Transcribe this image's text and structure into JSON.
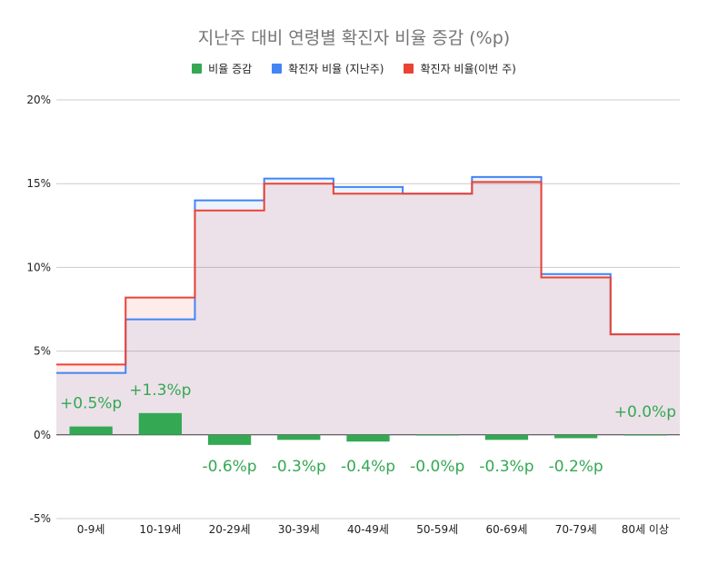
{
  "chart_data": {
    "type": "bar",
    "title": "지난주 대비 연령별 확진자 비율 증감 (%p)",
    "categories": [
      "0-9세",
      "10-19세",
      "20-29세",
      "30-39세",
      "40-49세",
      "50-59세",
      "60-69세",
      "70-79세",
      "80세 이상"
    ],
    "ylim": [
      -5,
      20
    ],
    "yticks": [
      "-5%",
      "0%",
      "5%",
      "10%",
      "15%",
      "20%"
    ],
    "ytick_values": [
      -5,
      0,
      5,
      10,
      15,
      20
    ],
    "grid": true,
    "legend_position": "top",
    "series": [
      {
        "name": "비율 증감",
        "kind": "bar",
        "color": "#34a853",
        "values": [
          0.5,
          1.3,
          -0.6,
          -0.3,
          -0.4,
          -0.0,
          -0.3,
          -0.2,
          0.0
        ],
        "labels": [
          "+0.5%p",
          "+1.3%p",
          "-0.6%p",
          "-0.3%p",
          "-0.4%p",
          "-0.0%p",
          "-0.3%p",
          "-0.2%p",
          "+0.0%p"
        ]
      },
      {
        "name": "확진자 비율 (지난주)",
        "kind": "stepped-area",
        "color": "#4285f4",
        "values": [
          3.7,
          6.9,
          14.0,
          15.3,
          14.8,
          14.4,
          15.4,
          9.6,
          6.0
        ]
      },
      {
        "name": "확진자 비율(이번 주)",
        "kind": "stepped-area",
        "color": "#ea4335",
        "values": [
          4.2,
          8.2,
          13.4,
          15.0,
          14.4,
          14.4,
          15.1,
          9.4,
          6.0
        ]
      }
    ]
  }
}
